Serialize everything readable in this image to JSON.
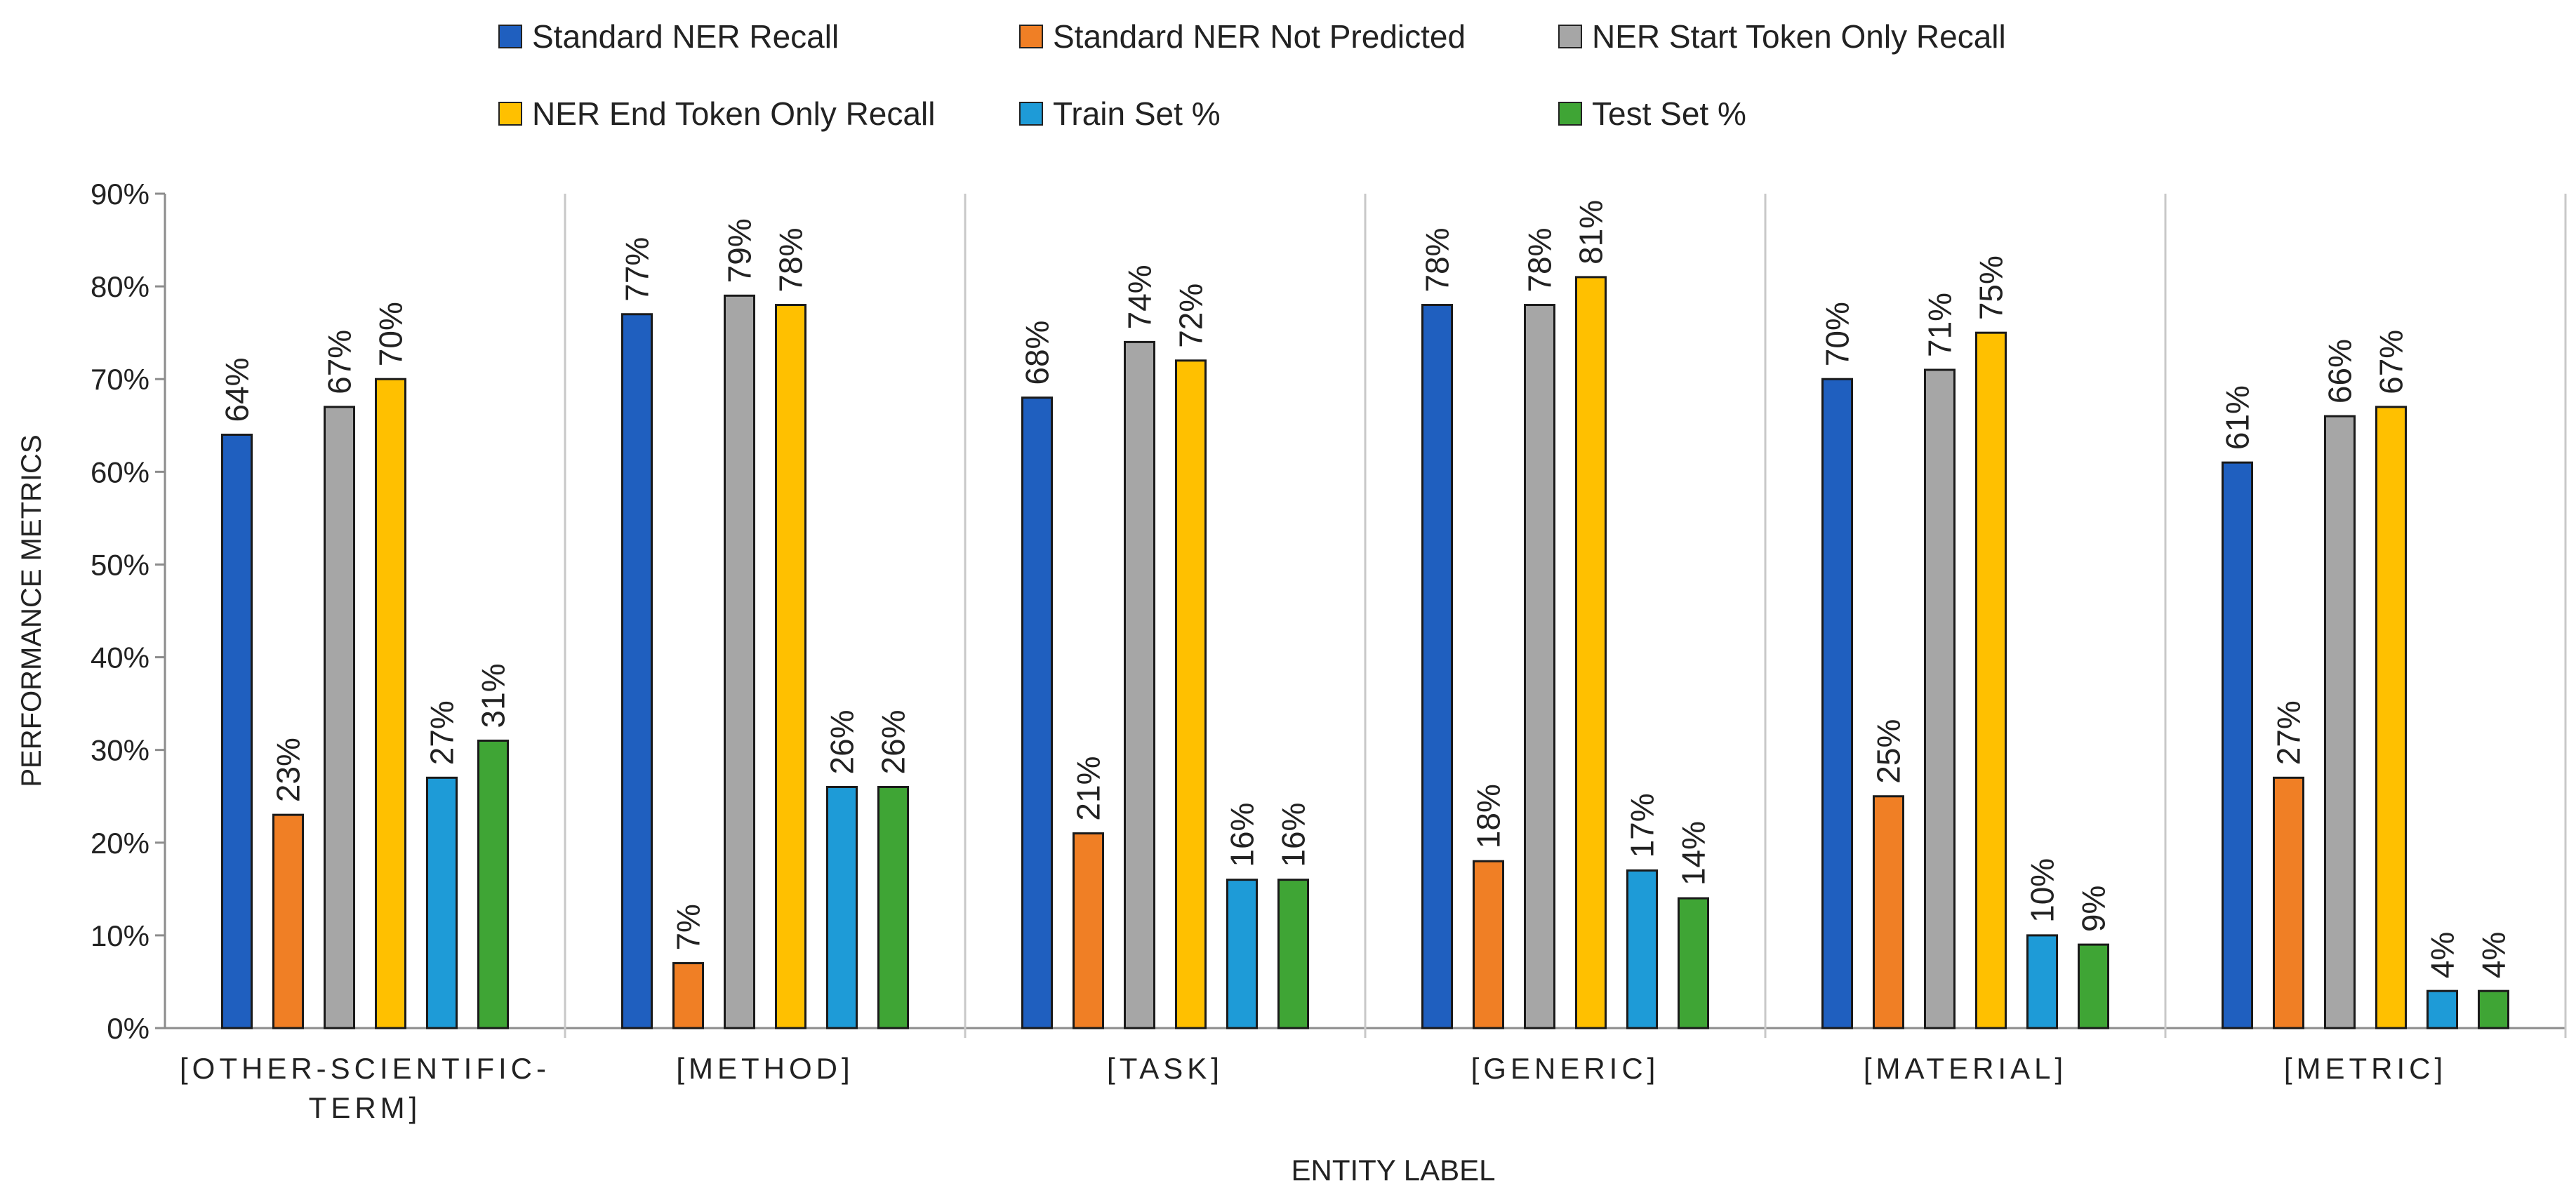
{
  "chart_data": {
    "type": "bar",
    "title": "",
    "xlabel": "ENTITY LABEL",
    "ylabel": "PERFORMANCE METRICS",
    "ylim": [
      0,
      90
    ],
    "yticks": [
      0,
      10,
      20,
      30,
      40,
      50,
      60,
      70,
      80,
      90
    ],
    "ytick_suffix": "%",
    "grid": false,
    "legend_position": "top",
    "categories": [
      "[OTHER-SCIENTIFIC-TERM]",
      "[METHOD]",
      "[TASK]",
      "[GENERIC]",
      "[MATERIAL]",
      "[METRIC]"
    ],
    "category_lines": [
      [
        "[OTHER-SCIENTIFIC-",
        "TERM]"
      ],
      [
        "[METHOD]"
      ],
      [
        "[TASK]"
      ],
      [
        "[GENERIC]"
      ],
      [
        "[MATERIAL]"
      ],
      [
        "[METRIC]"
      ]
    ],
    "series": [
      {
        "name": "Standard NER Recall",
        "color": "#1f5fbf",
        "values": [
          64,
          77,
          68,
          78,
          70,
          61
        ]
      },
      {
        "name": "Standard NER Not Predicted",
        "color": "#f07f25",
        "values": [
          23,
          7,
          21,
          18,
          25,
          27
        ]
      },
      {
        "name": "NER Start Token Only Recall",
        "color": "#a6a6a6",
        "values": [
          67,
          79,
          74,
          78,
          71,
          66
        ]
      },
      {
        "name": "NER End Token Only Recall",
        "color": "#ffc000",
        "values": [
          70,
          78,
          72,
          81,
          75,
          67
        ]
      },
      {
        "name": "Train Set %",
        "color": "#1e9bd7",
        "values": [
          27,
          26,
          16,
          17,
          10,
          4
        ]
      },
      {
        "name": "Test Set %",
        "color": "#3fa535",
        "values": [
          31,
          26,
          16,
          14,
          9,
          4
        ]
      }
    ]
  }
}
